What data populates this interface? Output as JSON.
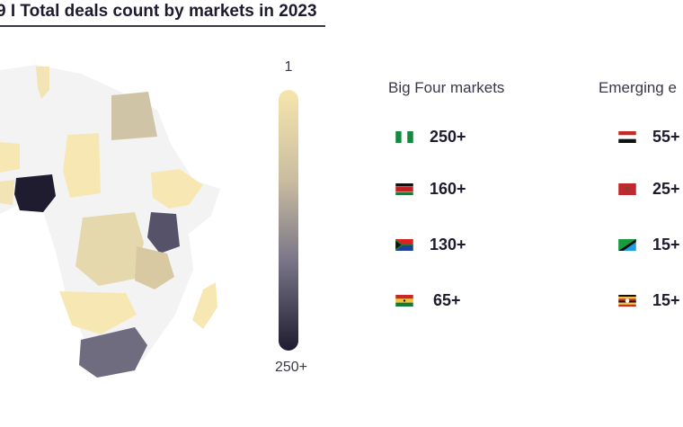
{
  "title": "9 I Total deals count by markets in 2023",
  "scale": {
    "min_label": "1",
    "max_label": "250+",
    "colors": [
      "#f6e6ad",
      "#1f1c2f"
    ]
  },
  "groups": [
    {
      "title": "Big Four markets",
      "items": [
        {
          "flag": "nigeria-flag-icon",
          "value": "250+"
        },
        {
          "flag": "kenya-flag-icon",
          "value": "160+"
        },
        {
          "flag": "south-africa-flag-icon",
          "value": "130+"
        },
        {
          "flag": "ghana-flag-icon",
          "value": "65+"
        }
      ]
    },
    {
      "title": "Emerging e",
      "items": [
        {
          "flag": "egypt-flag-icon",
          "value": "55+"
        },
        {
          "flag": "morocco-flag-icon",
          "value": "25+"
        },
        {
          "flag": "tanzania-flag-icon",
          "value": "15+"
        },
        {
          "flag": "uganda-flag-icon",
          "value": "15+"
        }
      ]
    }
  ],
  "chart_data": {
    "type": "choropleth",
    "title": "9 I Total deals count by markets in 2023",
    "legend_range": [
      "1",
      "250+"
    ],
    "series": [
      {
        "name": "Big Four markets",
        "values": [
          "250+",
          "160+",
          "130+",
          "65+"
        ]
      },
      {
        "name": "Emerging e",
        "values": [
          "55+",
          "25+",
          "15+",
          "15+"
        ]
      }
    ]
  }
}
